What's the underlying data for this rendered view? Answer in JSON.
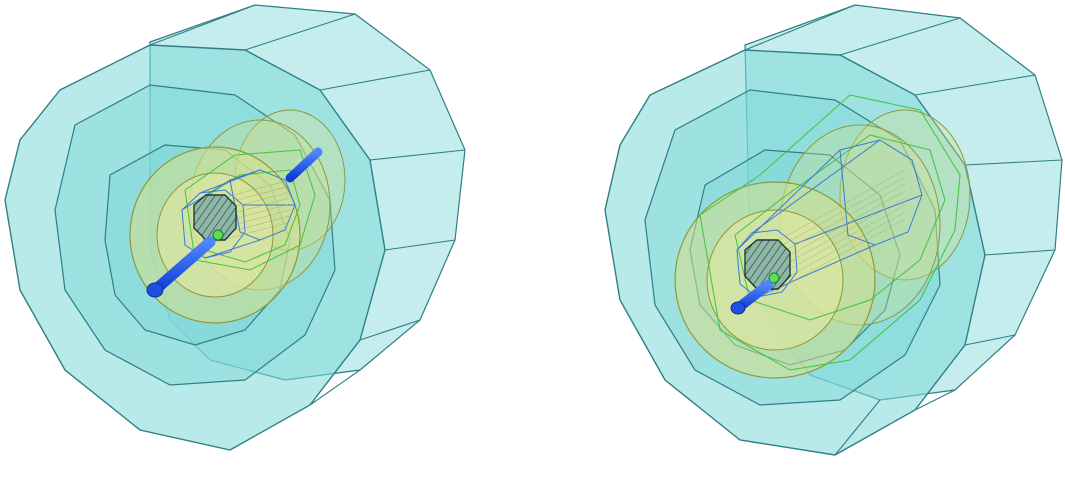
{
  "figure": {
    "panels": [
      {
        "id": "left",
        "view": "detector-geometry-render"
      },
      {
        "id": "right",
        "view": "detector-geometry-render"
      }
    ],
    "colors": {
      "outer_barrel_fill": "#7fd8d8",
      "outer_barrel_stroke": "#2e7f86",
      "calorimeter_fill": "#d8e08a",
      "calorimeter_stroke": "#8c9a3a",
      "inner_tracker_stroke": "#3a7bd5",
      "green_wire": "#3ec43e",
      "core_fill": "#8fb7a8",
      "beam_pipe": "#1e5bff"
    }
  }
}
